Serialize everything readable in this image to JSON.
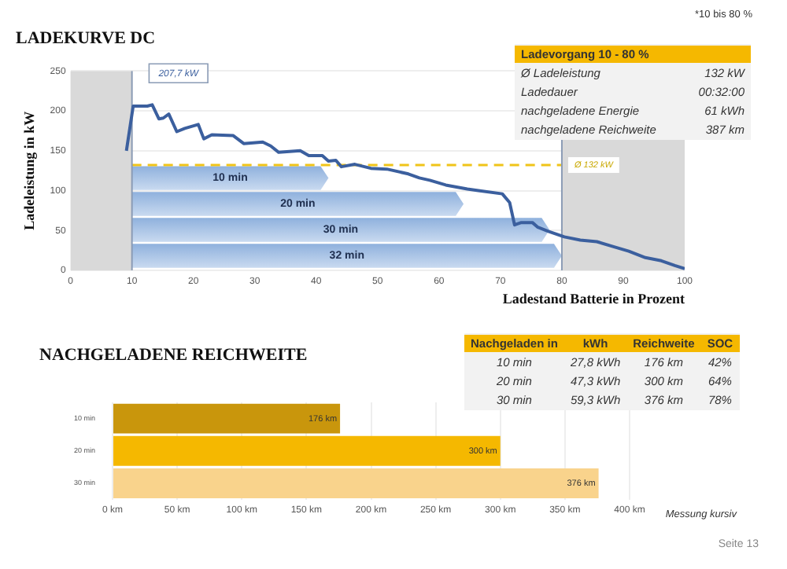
{
  "chart_data": [
    {
      "type": "line",
      "title": "LADEKURVE DC",
      "xlabel": "Ladestand Batterie in Prozent",
      "ylabel": "Ladeleistung in kW",
      "x": [
        9.1,
        10.2,
        12.5,
        13.3,
        14.4,
        15.1,
        16,
        17.3,
        18.6,
        20.8,
        21.7,
        23,
        26.5,
        28.2,
        31.3,
        32.6,
        33.9,
        37.4,
        38.8,
        41,
        42,
        43.2,
        44.1,
        46.3,
        48.9,
        51.5,
        55,
        56.8,
        58.5,
        61.1,
        64.6,
        66.4,
        70.3,
        71.5,
        72.3,
        73.4,
        75.2,
        76.1,
        77.8,
        80.4,
        83,
        85.7,
        88.3,
        90.9,
        93.6,
        96.2,
        98.4,
        100
      ],
      "series": [
        {
          "color": "#3b5f9e",
          "values": [
            150,
            206,
            206,
            207.7,
            190,
            191,
            196,
            174,
            178,
            183,
            165,
            170,
            169,
            159,
            161,
            156,
            148,
            150,
            144,
            144,
            137,
            138,
            130,
            133,
            128,
            127,
            121,
            116,
            113,
            107,
            102,
            100,
            96,
            85,
            57,
            60,
            60,
            54,
            49,
            42,
            38,
            36,
            30,
            24,
            16,
            12,
            6,
            2
          ]
        }
      ],
      "xlim": [
        0,
        100
      ],
      "xticks": [
        0,
        10,
        20,
        30,
        40,
        50,
        60,
        70,
        80,
        90,
        100
      ],
      "ylim": [
        0,
        250
      ],
      "yticks": [
        0,
        50,
        100,
        150,
        200,
        250
      ],
      "grid": "y",
      "legend": false,
      "marker": "none",
      "line_style": "solid",
      "ref_lines": [
        {
          "axis": "y",
          "value": 132,
          "label": "Ø 132 kW",
          "color": "#f0c419",
          "line_style": "dashed"
        },
        {
          "axis": "x",
          "value": 10,
          "color": "#8a9bb5"
        },
        {
          "axis": "x",
          "value": 80,
          "color": "#8a9bb5"
        }
      ],
      "bands": [
        {
          "axis": "x",
          "from": 0,
          "to": 10,
          "color": "#d9d9d9"
        },
        {
          "axis": "x",
          "from": 80,
          "to": 100,
          "color": "#d9d9d9"
        },
        {
          "axis": "x",
          "from": 10,
          "to": 42,
          "label": "10 min",
          "color": "#8fb1dd"
        },
        {
          "axis": "x",
          "from": 10,
          "to": 64,
          "label": "20 min",
          "color": "#8fb1dd"
        },
        {
          "axis": "x",
          "from": 10,
          "to": 78,
          "label": "30 min",
          "color": "#8fb1dd"
        },
        {
          "axis": "x",
          "from": 10,
          "to": 80,
          "label": "32 min",
          "color": "#8fb1dd"
        }
      ],
      "annotations": [
        {
          "text": "207,7 kW",
          "x": 13.3,
          "y": 207.7
        },
        "Ladevorgang 10 - 80 %",
        "Ø Ladeleistung",
        "132 kW",
        "Ladedauer",
        "00:32:00",
        "nachgeladene Energie",
        "61 kWh",
        "nachgeladene Reichweite",
        "387 km",
        "*10 bis 80 %"
      ]
    },
    {
      "type": "bar",
      "orientation": "horizontal",
      "title": "NACHGELADENE REICHWEITE",
      "categories": [
        "10 min",
        "20 min",
        "30 min"
      ],
      "values": [
        176,
        300,
        376
      ],
      "colors": [
        "#c9960c",
        "#f5b800",
        "#f9d38c"
      ],
      "value_labels": [
        "176 km",
        "300 km",
        "376 km"
      ],
      "xlim": [
        0,
        400
      ],
      "xticks": [
        {
          "value": 0,
          "label": "0 km"
        },
        {
          "value": 50,
          "label": "50 km"
        },
        {
          "value": 100,
          "label": "100 km"
        },
        {
          "value": 150,
          "label": "150 km"
        },
        {
          "value": 200,
          "label": "200 km"
        },
        {
          "value": 250,
          "label": "250 km"
        },
        {
          "value": 300,
          "label": "300 km"
        },
        {
          "value": 350,
          "label": "350 km"
        },
        {
          "value": 400,
          "label": "400 km"
        }
      ],
      "grid": "x",
      "legend": false,
      "annotations": [
        "Nachgeladen in",
        "kWh",
        "Reichweite",
        "SOC",
        "10 min",
        "27,8 kWh",
        "176 km",
        "42%",
        "20 min",
        "47,3 kWh",
        "300 km",
        "64%",
        "30 min",
        "59,3 kWh",
        "376 km",
        "78%",
        "Messung kursiv",
        "Seite 13"
      ]
    }
  ]
}
